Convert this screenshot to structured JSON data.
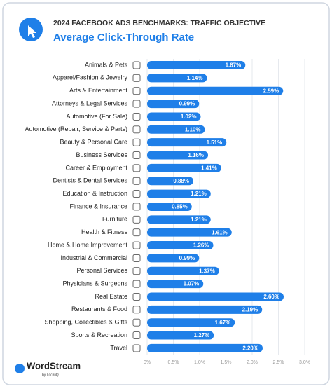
{
  "chart_data": {
    "type": "bar",
    "subtitle": "2024 FACEBOOK ADS BENCHMARKS: TRAFFIC OBJECTIVE",
    "title": "Average Click-Through Rate",
    "categories": [
      "Animals & Pets",
      "Apparel/Fashion & Jewelry",
      "Arts & Entertainment",
      "Attorneys & Legal Services",
      "Automotive (For Sale)",
      "Automotive (Repair, Service & Parts)",
      "Beauty & Personal Care",
      "Business Services",
      "Career & Employment",
      "Dentists & Dental Services",
      "Education & Instruction",
      "Finance & Insurance",
      "Furniture",
      "Health & Fitness",
      "Home & Home Improvement",
      "Industrial & Commercial",
      "Personal Services",
      "Physicians & Surgeons",
      "Real Estate",
      "Restaurants & Food",
      "Shopping, Collectibles & Gifts",
      "Sports & Recreation",
      "Travel"
    ],
    "values": [
      1.87,
      1.14,
      2.59,
      0.99,
      1.02,
      1.1,
      1.51,
      1.16,
      1.41,
      0.88,
      1.21,
      0.85,
      1.21,
      1.61,
      1.26,
      0.99,
      1.37,
      1.07,
      2.6,
      2.19,
      1.67,
      1.27,
      2.2
    ],
    "value_labels": [
      "1.87%",
      "1.14%",
      "2.59%",
      "0.99%",
      "1.02%",
      "1.10%",
      "1.51%",
      "1.16%",
      "1.41%",
      "0.88%",
      "1.21%",
      "0.85%",
      "1.21%",
      "1.61%",
      "1.26%",
      "0.99%",
      "1.37%",
      "1.07%",
      "2.60%",
      "2.19%",
      "1.67%",
      "1.27%",
      "2.20%"
    ],
    "color": "#1f7fe8",
    "orientation": "horizontal",
    "xlim": [
      0,
      3.0
    ],
    "xticks": [
      {
        "value": 0,
        "label": "0%"
      },
      {
        "value": 0.5,
        "label": "0.5%"
      },
      {
        "value": 1.0,
        "label": "1.0%"
      },
      {
        "value": 1.5,
        "label": "1.5%"
      },
      {
        "value": 2.0,
        "label": "2.0%"
      },
      {
        "value": 2.5,
        "label": "2.5%"
      },
      {
        "value": 3.0,
        "label": "3.0%"
      }
    ],
    "grid": true,
    "brand": "WordStream",
    "brand_sub": "by LocaliQ"
  }
}
